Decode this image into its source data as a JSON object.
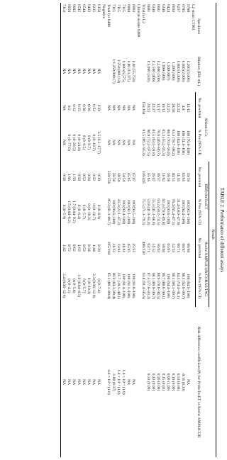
{
  "title": "TABLE 2. Performance of different assays",
  "header": {
    "specimen": "Specimen",
    "dilution": "Dilution (EB/ mL)",
    "abbott": "Abbott LCx",
    "result": "Result",
    "bd": "BDProbeTecET",
    "roche": "Roche AMPLICOR/COBAS/TAG",
    "risk": "Risk difference coefficient (P) for ProbeTecET vs Roche AMPLICOR",
    "npos": "No. pos/total",
    "ppos": "% Pos (95% CI)"
  },
  "rows": [
    [
      "L2 strain CT001",
      "",
      "",
      "",
      "",
      "",
      "",
      "",
      ""
    ],
    [
      "6788",
      "1:200 (5,000)",
      "12/12",
      "100 (76.0–100)",
      "59/59",
      "100 (93.9–100)",
      "66/66",
      "100 (94.5–100)",
      "NA"
    ],
    [
      "6785",
      "1:300 (2,000)",
      "4/4",
      "100 (51.0–100)",
      "65/65",
      "100 (94.4–100)",
      "66/67",
      "98.5 (92.0–99.7)",
      "-0.15 (0.31)"
    ],
    [
      "6257",
      "1:600 (1,000)",
      "22/22",
      "100 (84.6–100)",
      "11/35",
      "31.4 (18.6–47.9)",
      "60/71",
      "84.5 (74.4–91.1)",
      "0.53 (0.00)"
    ],
    [
      "6693",
      "1:200 (500)",
      "28/30",
      "93.3 (78.7–98.2)",
      "40/51",
      "78.4 (65.4–87.5)",
      "52/53",
      "98.1 (90.1–99.7)",
      "0.19 (0.00)"
    ],
    [
      "6424",
      "1:500 (667)",
      "22/25",
      "88.0 (70.0–95.8)",
      "56/56",
      "100 (93.6–100)",
      "65/65",
      "100 (94.4–100)",
      "0.00 (1.00)"
    ],
    [
      "6346",
      "1:600 (500)",
      "10/12",
      "83.3 (55.2–95.3)",
      "51/62",
      "82.3 (70.9–89.8)",
      "58/60",
      "96.7 (88.6–99.1)",
      "0.15 (0.03)"
    ],
    [
      "6681",
      "1:2,000 (500)",
      "12/17",
      "70.6 (46.9–86.7)",
      "36/57",
      "63.2 (50.2–74.5)",
      "56/63",
      "88.9 (78.8–94.5)",
      "0.26 (0.00)"
    ],
    [
      "6346",
      "1:2,500 (400)",
      "22/27",
      "81.5 (63.3–91.8)",
      "26/47",
      "55.3 (41.3–68.6)",
      "51/52",
      "98.1 (89.9–99.7)",
      "0.43 (0.00)"
    ],
    [
      "6681",
      "1:5,000 (333)",
      "20/22",
      "90.9 (72.2–97.5)",
      "35/65",
      "53.8 (41.9–65.4)",
      "62/71",
      "87.3 (77.6–93.2)",
      "0.33 (0.00)"
    ],
    [
      "Total for L2",
      "",
      "150/164",
      "91.5 (86.3–95.3)",
      "336/445",
      "75.5 (71.3–79.3)",
      "486/518",
      "93.8 (91.4–95.6)",
      ""
    ],
    [
      "Clinical isolate 6408",
      "",
      "",
      "",
      "",
      "",
      "",
      "",
      ""
    ],
    [
      "6963",
      "1:40 (55,750)",
      "NA",
      "NA",
      "47/47",
      "100 (93.5–100)",
      "35/35",
      "100 (91.8–100)",
      "NA"
    ],
    [
      "6994",
      "1:80 (13,375)",
      "NA",
      "NA",
      "45/45",
      "100 (92.1–100)",
      "45/45",
      "100 (92.1–100)",
      "NA"
    ],
    [
      "7115",
      "1:400 (6,575)",
      "NA",
      "NA",
      "54/54",
      "100 (93.4–100)",
      "41/41",
      "100 (91.4–100)",
      "1.4 × 10⁻¹ (1.0)"
    ],
    [
      "7115",
      "1:250,000 (14)",
      "NA",
      "NA",
      "18/54",
      "33.3 (22.1–47.3)",
      "13/41",
      "31.7 (18.1–48.1)",
      "1.4 × 10⁻¹ (1.0)"
    ],
    [
      "7115",
      "1:1,250,000 (7)",
      "NA",
      "NA",
      "56/56",
      "100 (93.6–100)",
      "31/32",
      "96.9 (84.3–99.4)",
      "-1.00 (0.37)"
    ],
    [
      "Total for 6408",
      "",
      "NA",
      "NA",
      "220/256",
      "85.9 (81.3–89.7)",
      "165/194",
      "85.1 (80.1–89.8)",
      "4.4 × 10⁻³ (1.0)"
    ],
    [
      "Negative",
      "",
      "",
      "",
      "",
      "",
      "",
      "",
      ""
    ],
    [
      "6158",
      "NA",
      "1/29",
      "3.5 (0.1–17.7)",
      "0/39",
      "0 (0–8.9)",
      "0/39",
      "0 (0–7.4)",
      "NA"
    ],
    [
      "6235",
      "NA",
      "0/32",
      "0 (0–10.7)",
      "0/32",
      "0 (0–10.7)",
      "1/44",
      "2.3 (0.06–12.0)",
      "NA"
    ],
    [
      "6433",
      "NA",
      "0/36",
      "0 (0–9.7)",
      "0/34",
      "0 (0–10.3)",
      "0/34",
      "0 (0–10.3)",
      "NA"
    ],
    [
      "6544",
      "NA",
      "0/30",
      "0 (0–9.5)",
      "0/53",
      "0 (0–5.7)",
      "0/53",
      "0 (0–5.7)",
      "NA"
    ],
    [
      "6545",
      "NA",
      "0/15",
      "0 (0–21.8)",
      "0/58",
      "0 (0–6.2)",
      "1/63",
      "1.6 (0.04–8.5)",
      "NA"
    ],
    [
      "6682",
      "NA",
      "0/12",
      "0 (0–26.5)",
      "1/58",
      "1.7 (0.04–9.2)",
      "0/62",
      "0 (0–5.8)",
      "NA"
    ],
    [
      "6959",
      "NA",
      "0/2",
      "0 (0–77.6)",
      "1/66",
      "1.5 (0.04–8.2)",
      "0/72",
      "0 (0–4.1)",
      "NA"
    ],
    [
      "7114",
      "NA",
      "NA",
      "NA",
      "0/58",
      "0 (0–5.9)",
      "1/42",
      "2.4 (0.06–12.6)",
      "NA"
    ]
  ]
}
